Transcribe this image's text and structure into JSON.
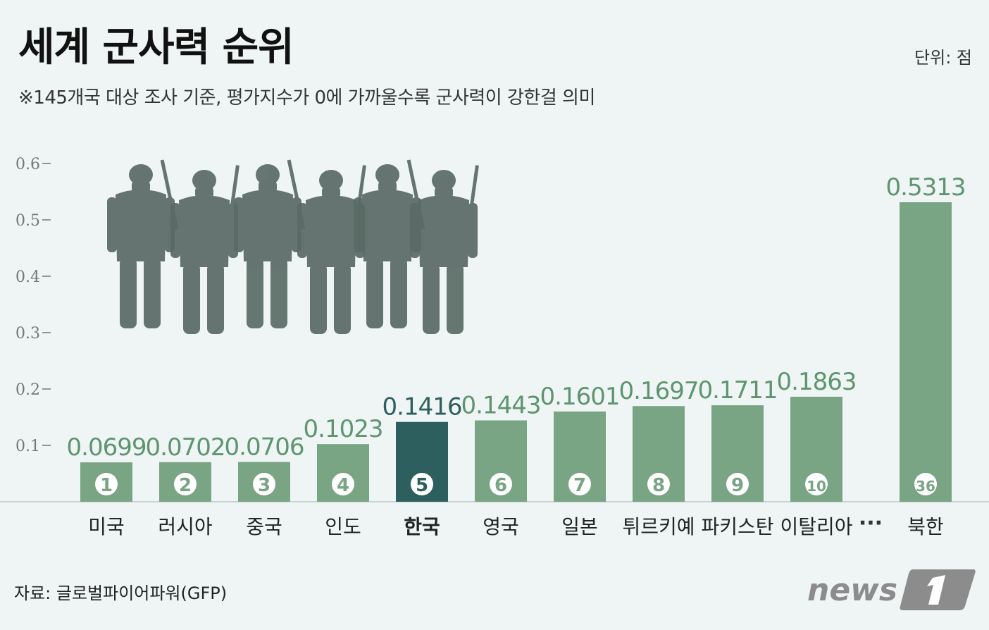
{
  "header": {
    "title": "세계 군사력 순위",
    "unit": "단위: 점",
    "subtitle": "※145개국 대상 조사 기준, 평가지수가 0에 가까울수록 군사력이 강한걸 의미"
  },
  "footer": {
    "source": "자료: 글로벌파이어파워(GFP)",
    "logo_text": "news1"
  },
  "colors": {
    "bar": "#79a584",
    "highlight": "#2d5f5f",
    "value_text": "#5f9470",
    "highlight_text": "#2d5f5f",
    "silhouette": "#5a6a65"
  },
  "chart_data": {
    "type": "bar",
    "title": "세계 군사력 순위",
    "ylim": [
      0,
      0.6
    ],
    "yticks": [
      "0.1",
      "0.2",
      "0.3",
      "0.4",
      "0.5",
      "0.6"
    ],
    "grid": false,
    "categories": [
      "미국",
      "러시아",
      "중국",
      "인도",
      "한국",
      "영국",
      "일본",
      "튀르키예",
      "파키스탄",
      "이탈리아",
      "북한"
    ],
    "ranks": [
      "1",
      "2",
      "3",
      "4",
      "5",
      "6",
      "7",
      "8",
      "9",
      "10",
      "36"
    ],
    "values": [
      0.0699,
      0.0702,
      0.0706,
      0.1023,
      0.1416,
      0.1443,
      0.1601,
      0.1697,
      0.1711,
      0.1863,
      0.5313
    ],
    "value_labels": [
      "0.0699",
      "0.0702",
      "0.0706",
      "0.1023",
      "0.1416",
      "0.1443",
      "0.1601",
      "0.1697",
      "0.1711",
      "0.1863",
      "0.5313"
    ],
    "highlight": "한국",
    "gap_marker": "···"
  }
}
